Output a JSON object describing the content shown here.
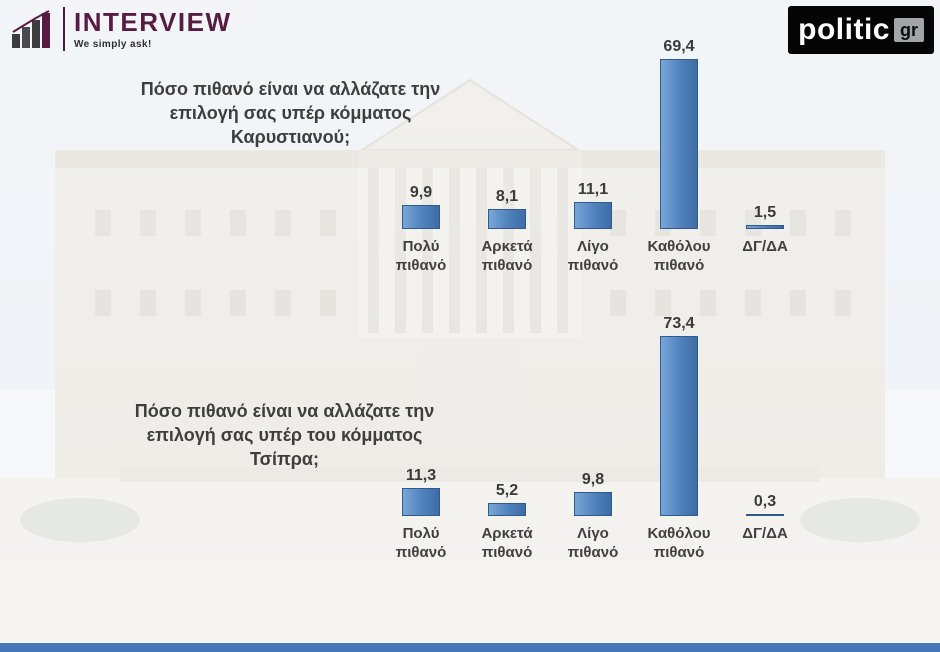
{
  "header": {
    "interview": {
      "name": "INTERVIEW",
      "tagline": "We simply ask!"
    },
    "politic": {
      "brand": "politic",
      "tld": "gr"
    }
  },
  "colors": {
    "bar_fill": "#4f81bd",
    "bar_border": "#2f5a8a",
    "label_text": "#3e3e3e",
    "interview_brand": "#581c42",
    "politic_bg": "#050505",
    "politic_gr_bg": "#a2a4a7",
    "bottom_strip": "#4677b8"
  },
  "chart_data": [
    {
      "type": "bar",
      "title": "Πόσο πιθανό είναι να αλλάζατε την\nεπιλογή σας υπέρ κόμματος\nΚαρυστιανού;",
      "categories": [
        "Πολύ\nπιθανό",
        "Αρκετά\nπιθανό",
        "Λίγο\nπιθανό",
        "Καθόλου\nπιθανό",
        "ΔΓ/ΔΑ"
      ],
      "values": [
        9.9,
        8.1,
        11.1,
        69.4,
        1.5
      ],
      "value_labels": [
        "9,9",
        "8,1",
        "11,1",
        "69,4",
        "1,5"
      ],
      "xlabel": "",
      "ylabel": "",
      "ylim": [
        0,
        80
      ],
      "grid": false,
      "legend": false
    },
    {
      "type": "bar",
      "title": "Πόσο πιθανό είναι να αλλάζατε την\nεπιλογή σας υπέρ του κόμματος\nΤσίπρα;",
      "categories": [
        "Πολύ\nπιθανό",
        "Αρκετά\nπιθανό",
        "Λίγο\nπιθανό",
        "Καθόλου\nπιθανό",
        "ΔΓ/ΔΑ"
      ],
      "values": [
        11.3,
        5.2,
        9.8,
        73.4,
        0.3
      ],
      "value_labels": [
        "11,3",
        "5,2",
        "9,8",
        "73,4",
        "0,3"
      ],
      "xlabel": "",
      "ylabel": "",
      "ylim": [
        0,
        80
      ],
      "grid": false,
      "legend": false
    }
  ]
}
